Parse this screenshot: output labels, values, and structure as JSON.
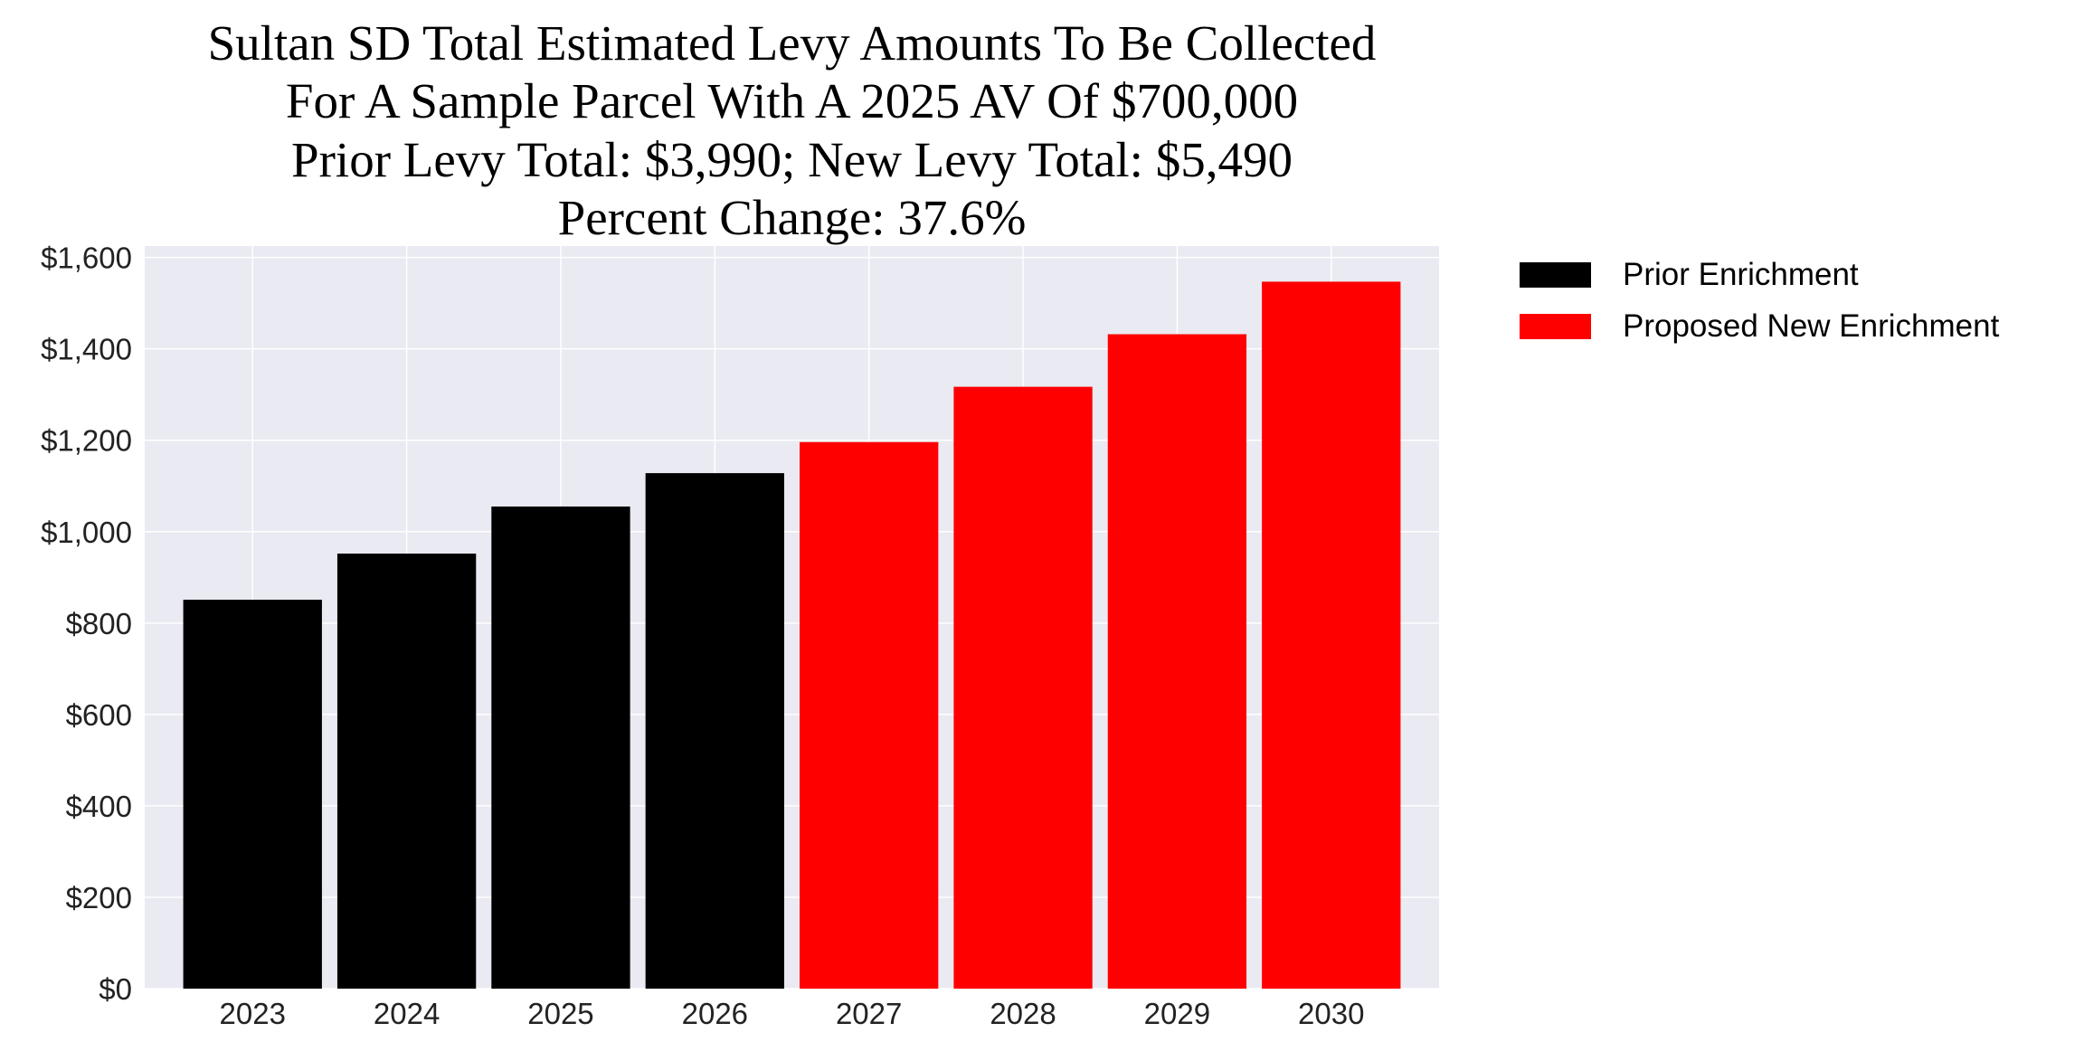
{
  "chart_data": {
    "type": "bar",
    "title_lines": [
      "Sultan SD Total Estimated Levy Amounts To Be Collected",
      "For A Sample Parcel With A 2025 AV Of $700,000",
      "Prior Levy Total:  $3,990; New Levy Total: $5,490",
      "Percent Change: 37.6%"
    ],
    "categories": [
      "2023",
      "2024",
      "2025",
      "2026",
      "2027",
      "2028",
      "2029",
      "2030"
    ],
    "values": [
      851,
      952,
      1055,
      1128,
      1196,
      1317,
      1432,
      1547
    ],
    "bar_series": [
      "Prior Enrichment",
      "Prior Enrichment",
      "Prior Enrichment",
      "Prior Enrichment",
      "Proposed New Enrichment",
      "Proposed New Enrichment",
      "Proposed New Enrichment",
      "Proposed New Enrichment"
    ],
    "legend": [
      {
        "name": "Prior Enrichment",
        "color": "#000000"
      },
      {
        "name": "Proposed New Enrichment",
        "color": "#ff0000"
      }
    ],
    "legend_placement": "outside-right-top",
    "yticks": [
      0,
      200,
      400,
      600,
      800,
      1000,
      1200,
      1400,
      1600
    ],
    "ytick_labels": [
      "$0",
      "$200",
      "$400",
      "$600",
      "$800",
      "$1,000",
      "$1,200",
      "$1,400",
      "$1,600"
    ],
    "ylim": [
      0,
      1625
    ],
    "xlabel": "",
    "ylabel": "",
    "grid": true,
    "background": "#eaeaf2"
  }
}
